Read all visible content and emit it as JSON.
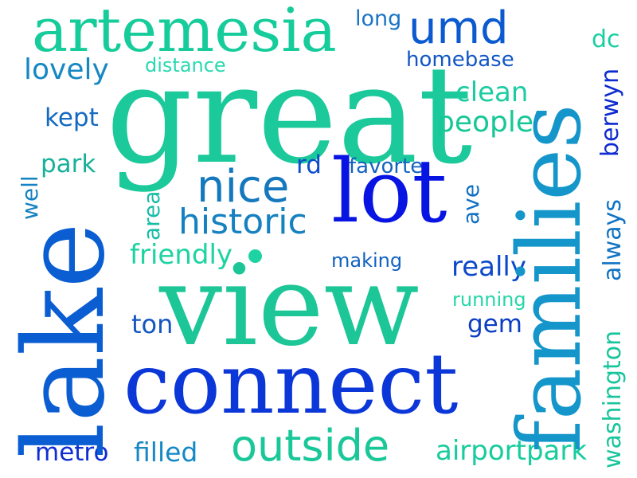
{
  "cloud": {
    "words": {
      "artemesia": "artemesia",
      "long": "long",
      "umd": "umd",
      "dc": "dc",
      "lovely": "lovely",
      "distance": "distance",
      "homebase": "homebase",
      "great": "great",
      "clean": "clean",
      "kept": "kept",
      "people": "people",
      "park": "park",
      "rd": "rd",
      "favorte": "favorte",
      "nice": "nice",
      "lot": "lot",
      "historic": "historic",
      "friendly": "friendly",
      "making": "making",
      "really": "really",
      "running": "running",
      "view": "view",
      "ton": "ton",
      "gem": "gem",
      "connect": "connect",
      "outside": "outside",
      "metro": "metro",
      "filled": "filled",
      "airportpark": "airportpark",
      "families": "families",
      "lake": "lake",
      "berwyn": "berwyn",
      "well": "well",
      "area": "area",
      "ave": "ave",
      "always": "always",
      "washington": "washington"
    },
    "colors": {
      "background": "#ffffff",
      "green": "#1bc99b",
      "teal": "#1596ca",
      "blue": "#0b36d8",
      "deep_blue": "#0714e2"
    }
  }
}
